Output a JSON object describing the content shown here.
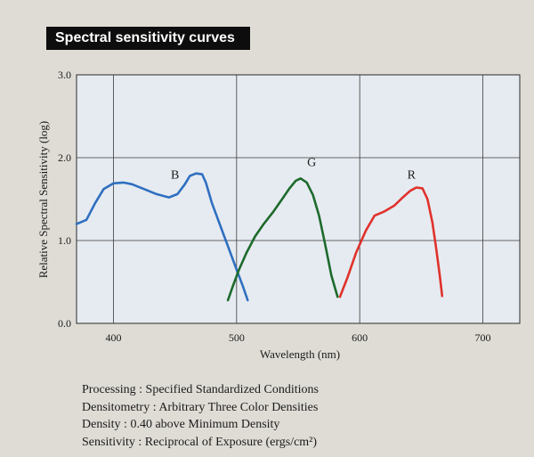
{
  "header": {
    "title": "Spectral sensitivity curves"
  },
  "chart_data": {
    "type": "line",
    "title": "Spectral sensitivity curves",
    "xlabel": "Wavelength (nm)",
    "ylabel": "Relative Spectral Sensitivity (log)",
    "xlim": [
      370,
      730
    ],
    "ylim": [
      0.0,
      3.0
    ],
    "x_ticks": [
      400,
      500,
      600,
      700
    ],
    "y_ticks": [
      "0.0",
      "1.0",
      "2.0",
      "3.0"
    ],
    "grid": true,
    "series": [
      {
        "name": "B",
        "color": "#2f6fc0",
        "x": [
          370,
          378,
          385,
          392,
          400,
          408,
          415,
          425,
          435,
          445,
          452,
          458,
          462,
          467,
          472,
          475,
          480,
          485,
          490,
          495,
          500,
          505,
          509
        ],
        "y": [
          1.2,
          1.25,
          1.45,
          1.62,
          1.69,
          1.7,
          1.68,
          1.62,
          1.56,
          1.52,
          1.56,
          1.68,
          1.78,
          1.81,
          1.8,
          1.7,
          1.45,
          1.25,
          1.05,
          0.85,
          0.65,
          0.45,
          0.28
        ]
      },
      {
        "name": "G",
        "color": "#1d6a2c",
        "x": [
          493,
          497,
          502,
          508,
          515,
          522,
          530,
          537,
          543,
          548,
          552,
          557,
          562,
          567,
          572,
          577,
          582
        ],
        "y": [
          0.28,
          0.45,
          0.65,
          0.85,
          1.05,
          1.2,
          1.35,
          1.5,
          1.63,
          1.72,
          1.75,
          1.7,
          1.55,
          1.3,
          0.95,
          0.58,
          0.32
        ]
      },
      {
        "name": "R",
        "color": "#e0322c",
        "x": [
          584,
          590,
          597,
          605,
          612,
          620,
          628,
          635,
          641,
          646,
          651,
          655,
          659,
          662,
          665,
          667
        ],
        "y": [
          0.32,
          0.55,
          0.85,
          1.12,
          1.3,
          1.35,
          1.42,
          1.52,
          1.6,
          1.64,
          1.63,
          1.5,
          1.22,
          0.92,
          0.58,
          0.33
        ]
      }
    ]
  },
  "notes": [
    "Processing : Specified Standardized Conditions",
    "Densitometry : Arbitrary Three Color Densities",
    "Density : 0.40 above Minimum Density",
    "Sensitivity : Reciprocal of Exposure (ergs/cm²)"
  ]
}
